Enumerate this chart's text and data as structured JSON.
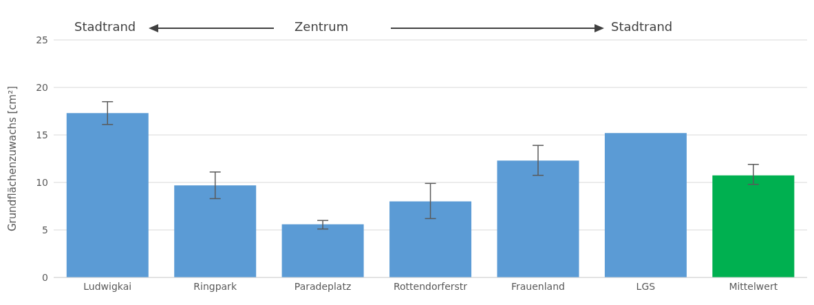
{
  "chart_data": {
    "type": "bar",
    "ylabel": "Grundflächenzuwachs [cm²]",
    "categories": [
      "Ludwigkai",
      "Ringpark",
      "Paradeplatz",
      "Rottendorferstr",
      "Frauenland",
      "LGS",
      "Mittelwert"
    ],
    "values": [
      17.3,
      9.7,
      5.6,
      8.0,
      12.3,
      15.2,
      10.75
    ],
    "colors": [
      "#5b9bd5",
      "#5b9bd5",
      "#5b9bd5",
      "#5b9bd5",
      "#5b9bd5",
      "#5b9bd5",
      "#00b050"
    ],
    "errors": [
      [
        16.1,
        18.5
      ],
      [
        8.3,
        11.1
      ],
      [
        5.1,
        6.0
      ],
      [
        6.2,
        9.9
      ],
      [
        10.75,
        13.9
      ],
      null,
      [
        9.8,
        11.9
      ]
    ],
    "ylim": [
      0,
      25
    ],
    "yticks": [
      0,
      5,
      10,
      15,
      20,
      25
    ],
    "grid": "y",
    "annotations": [
      "Stadtrand",
      "Zentrum",
      "Stadtrand"
    ]
  }
}
